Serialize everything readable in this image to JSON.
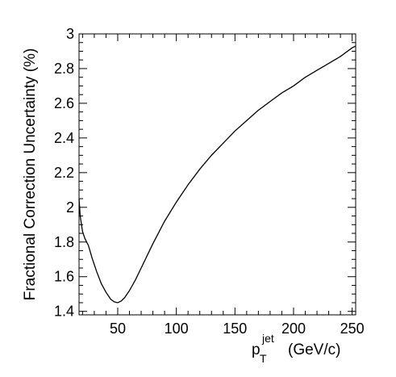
{
  "chart_data": {
    "type": "line",
    "title": "",
    "xlabel": {
      "main": "p",
      "superscript": "jet",
      "subscript": "T",
      "unit": "(GeV/c)"
    },
    "ylabel": "Fractional Correction Uncertainty (%)",
    "xlim": [
      17,
      253
    ],
    "ylim": [
      1.38,
      3.0
    ],
    "x_ticks": [
      50,
      100,
      150,
      200,
      250
    ],
    "y_ticks": [
      1.4,
      1.6,
      1.8,
      2.0,
      2.2,
      2.4,
      2.6,
      2.8,
      3.0
    ],
    "x_tick_labels": [
      "50",
      "100",
      "150",
      "200",
      "250"
    ],
    "y_tick_labels": [
      "1.4",
      "1.6",
      "1.8",
      "2",
      "2.2",
      "2.4",
      "2.6",
      "2.8",
      "3"
    ],
    "grid": false,
    "legend": "none",
    "series": [
      {
        "x": [
          17,
          18,
          20,
          22,
          25,
          28,
          32,
          36,
          40,
          44,
          47,
          50,
          53,
          56,
          60,
          65,
          70,
          75,
          80,
          90,
          100,
          110,
          120,
          130,
          140,
          150,
          160,
          170,
          180,
          190,
          200,
          210,
          220,
          230,
          240,
          250,
          253
        ],
        "y": [
          2.05,
          1.95,
          1.86,
          1.82,
          1.78,
          1.71,
          1.63,
          1.56,
          1.51,
          1.47,
          1.455,
          1.45,
          1.46,
          1.48,
          1.52,
          1.58,
          1.65,
          1.72,
          1.79,
          1.92,
          2.03,
          2.13,
          2.22,
          2.3,
          2.37,
          2.44,
          2.5,
          2.56,
          2.61,
          2.66,
          2.7,
          2.75,
          2.79,
          2.83,
          2.87,
          2.92,
          2.93
        ],
        "color": "#000000"
      }
    ]
  }
}
